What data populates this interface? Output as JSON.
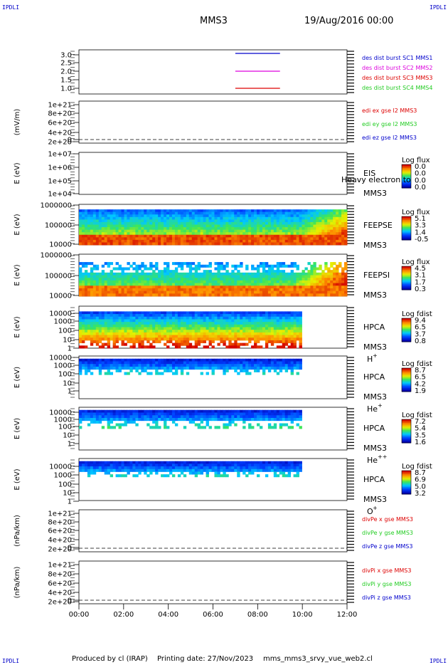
{
  "corners": {
    "top_left": "IPDLI",
    "top_right": "IPDLI",
    "bottom_left": "IPDLI",
    "bottom_right": "IPDLI"
  },
  "header": {
    "title": "MMS3",
    "date": "19/Aug/2016 00:00"
  },
  "footer": {
    "produced": "Produced by cl (IRAP)",
    "printed": "Printing date: 27/Nov/2023",
    "file": "mms_mms3_srvy_vue_web2.cl"
  },
  "colors": {
    "red": "#dd0000",
    "magenta": "#dd00dd",
    "blue": "#0000cc",
    "green": "#22cc22"
  },
  "chart_data": [
    {
      "type": "line",
      "id": "burst",
      "yticks": [
        "3.0",
        "2.5",
        "2.0",
        "1.5",
        "1.0"
      ],
      "series": [
        {
          "name": "des dist burst SC1 MMS1",
          "color": "#0000cc",
          "x": [
            7.0,
            9.0
          ],
          "y": [
            3.0,
            3.0
          ]
        },
        {
          "name": "des dist burst SC2 MMS2",
          "color": "#dd00dd",
          "x": [
            7.0,
            9.0
          ],
          "y": [
            2.0,
            2.0
          ]
        },
        {
          "name": "des dist burst SC3 MMS3",
          "color": "#dd0000",
          "x": [
            7.0,
            9.0
          ],
          "y": [
            1.0,
            1.0
          ]
        },
        {
          "name": "des dist burst SC4 MMS4",
          "color": "#22cc22"
        }
      ],
      "legend_colors": [
        "#0000cc",
        "#dd00dd",
        "#dd0000",
        "#22cc22"
      ],
      "legend_texts": [
        "des dist burst SC1 MMS1",
        "des dist burst SC2 MMS2",
        "des dist burst SC3 MMS3",
        "des dist burst SC4 MMS4"
      ]
    },
    {
      "type": "line",
      "id": "edi",
      "ylabel": "(mV/m)",
      "yticks": [
        "1e+21",
        "8e+20",
        "6e+20",
        "4e+20",
        "2e+20",
        "0"
      ],
      "legend_texts": [
        "edi ex gse l2 MMS3",
        "edi ey gse l2 MMS3",
        "edi ez gse l2 MMS3"
      ],
      "legend_colors": [
        "#dd0000",
        "#22cc22",
        "#0000cc"
      ]
    },
    {
      "type": "heatmap",
      "id": "eis",
      "ylabel": "E (eV)",
      "yticks": [
        "1e+07",
        "1e+06",
        "1e+05",
        "1e+04"
      ],
      "labels": [
        "EIS",
        "MMS3"
      ],
      "overlay": "Heavy electron to",
      "cbar_title": "Log flux",
      "cbar_ticks": [
        "0.0",
        "0.0",
        "0.0",
        "0.0"
      ]
    },
    {
      "type": "heatmap",
      "id": "feepse",
      "ylabel": "E (eV)",
      "yticks": [
        "1000000",
        "100000",
        "10000"
      ],
      "labels": [
        "FEEPSE",
        "MMS3"
      ],
      "cbar_title": "Log flux",
      "cbar_ticks": [
        "5.1",
        "3.3",
        "1.4",
        "-0.5"
      ]
    },
    {
      "type": "heatmap",
      "id": "feepsi",
      "ylabel": "E (eV)",
      "yticks": [
        "1000000",
        "100000",
        "10000"
      ],
      "labels": [
        "FEEPSI",
        "MMS3"
      ],
      "cbar_title": "Log flux",
      "cbar_ticks": [
        "4.5",
        "3.1",
        "1.7",
        "0.3"
      ]
    },
    {
      "type": "heatmap",
      "id": "hpca_h",
      "ylabel": "E (eV)",
      "yticks": [
        "10000",
        "1000",
        "100",
        "10",
        "1"
      ],
      "labels": [
        "HPCA",
        "MMS3",
        "H",
        "+"
      ],
      "cbar_title": "Log fdist",
      "cbar_ticks": [
        "9.4",
        "6.5",
        "3.7",
        "0.8"
      ]
    },
    {
      "type": "heatmap",
      "id": "hpca_he",
      "ylabel": "E (eV)",
      "yticks": [
        "10000",
        "1000",
        "100",
        "10",
        "1"
      ],
      "labels": [
        "HPCA",
        "MMS3",
        "He",
        "+"
      ],
      "cbar_title": "Log fdist",
      "cbar_ticks": [
        "8.7",
        "6.5",
        "4.2",
        "1.9"
      ]
    },
    {
      "type": "heatmap",
      "id": "hpca_hepp",
      "ylabel": "E (eV)",
      "yticks": [
        "10000",
        "1000",
        "100",
        "10",
        "1"
      ],
      "labels": [
        "HPCA",
        "MMS3",
        "He",
        "++"
      ],
      "cbar_title": "Log fdist",
      "cbar_ticks": [
        "7.2",
        "5.4",
        "3.5",
        "1.6"
      ]
    },
    {
      "type": "heatmap",
      "id": "hpca_o",
      "ylabel": "E (eV)",
      "yticks": [
        "10000",
        "1000",
        "100",
        "10",
        "1"
      ],
      "labels": [
        "HPCA",
        "MMS3",
        "O",
        "+"
      ],
      "cbar_title": "Log fdist",
      "cbar_ticks": [
        "8.7",
        "6.9",
        "5.0",
        "3.2"
      ]
    },
    {
      "type": "line",
      "id": "divpe",
      "ylabel": "(nPa/km)",
      "yticks": [
        "1e+21",
        "8e+20",
        "6e+20",
        "4e+20",
        "2e+20",
        "0"
      ],
      "legend_texts": [
        "divPe x gse MMS3",
        "divPe y gse MMS3",
        "divPe z gse MMS3"
      ],
      "legend_colors": [
        "#dd0000",
        "#22cc22",
        "#0000cc"
      ]
    },
    {
      "type": "line",
      "id": "divpi",
      "ylabel": "(nPa/km)",
      "yticks": [
        "1e+21",
        "8e+20",
        "6e+20",
        "4e+20",
        "2e+20",
        "0"
      ],
      "legend_texts": [
        "divPi x gse MMS3",
        "divPi y gse MMS3",
        "divPi z gse MMS3"
      ],
      "legend_colors": [
        "#dd0000",
        "#22cc22",
        "#0000cc"
      ]
    }
  ],
  "xaxis": {
    "ticks": [
      "00:00",
      "02:00",
      "04:00",
      "06:00",
      "08:00",
      "10:00",
      "12:00"
    ],
    "range_hours": [
      0,
      12
    ]
  }
}
